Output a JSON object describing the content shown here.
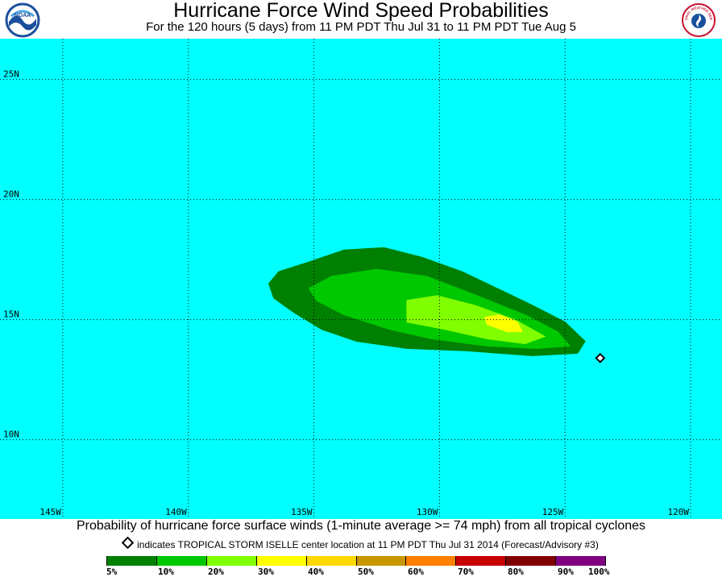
{
  "header": {
    "title": "Hurricane Force Wind Speed Probabilities",
    "subtitle": "For the 120 hours (5 days) from 11 PM PDT Thu Jul 31 to 11 PM PDT Tue Aug 5",
    "logo_left_text": "NOAA",
    "logo_right_text": "NATIONAL WEATHER SERVICE"
  },
  "map": {
    "background_color": "#00FFFF",
    "lon_range": [
      -147.5,
      -118.75
    ],
    "lat_range": [
      6.7,
      26.7
    ],
    "lon_ticks": [
      {
        "value": -145,
        "label": "145W"
      },
      {
        "value": -140,
        "label": "140W"
      },
      {
        "value": -135,
        "label": "135W"
      },
      {
        "value": -130,
        "label": "130W"
      },
      {
        "value": -125,
        "label": "125W"
      },
      {
        "value": -120,
        "label": "120W"
      }
    ],
    "lat_ticks": [
      {
        "value": 25,
        "label": "25N"
      },
      {
        "value": 20,
        "label": "20N"
      },
      {
        "value": 15,
        "label": "15N"
      },
      {
        "value": 10,
        "label": "10N"
      }
    ],
    "storm_center": {
      "lon": -123.6,
      "lat": 13.4
    },
    "probability_regions": [
      {
        "level": "5%",
        "color": "#008000",
        "points": [
          [
            -136.8,
            16.5
          ],
          [
            -136.4,
            17.0
          ],
          [
            -135.2,
            17.4
          ],
          [
            -133.8,
            17.9
          ],
          [
            -132.2,
            18.0
          ],
          [
            -130.7,
            17.6
          ],
          [
            -129.1,
            17.0
          ],
          [
            -127.7,
            16.3
          ],
          [
            -126.3,
            15.6
          ],
          [
            -125.0,
            14.9
          ],
          [
            -124.2,
            14.1
          ],
          [
            -124.5,
            13.6
          ],
          [
            -126.3,
            13.5
          ],
          [
            -128.9,
            13.7
          ],
          [
            -131.3,
            13.8
          ],
          [
            -133.3,
            14.1
          ],
          [
            -134.7,
            14.6
          ],
          [
            -135.8,
            15.3
          ],
          [
            -136.6,
            15.9
          ]
        ]
      },
      {
        "level": "10%",
        "color": "#00C800",
        "points": [
          [
            -135.2,
            16.3
          ],
          [
            -134.3,
            16.8
          ],
          [
            -132.5,
            17.1
          ],
          [
            -130.5,
            16.8
          ],
          [
            -128.5,
            16.0
          ],
          [
            -126.6,
            15.2
          ],
          [
            -125.3,
            14.5
          ],
          [
            -124.8,
            13.9
          ],
          [
            -126.1,
            13.8
          ],
          [
            -128.1,
            13.9
          ],
          [
            -130.3,
            14.2
          ],
          [
            -132.0,
            14.6
          ],
          [
            -133.8,
            15.2
          ],
          [
            -134.9,
            15.8
          ]
        ]
      },
      {
        "level": "20%",
        "color": "#80FF00",
        "points": [
          [
            -131.3,
            15.8
          ],
          [
            -130.1,
            16.0
          ],
          [
            -128.6,
            15.6
          ],
          [
            -127.0,
            15.0
          ],
          [
            -125.8,
            14.3
          ],
          [
            -126.6,
            14.0
          ],
          [
            -128.1,
            14.2
          ],
          [
            -129.8,
            14.6
          ],
          [
            -131.3,
            14.9
          ]
        ]
      },
      {
        "level": "30%",
        "color": "#FFFF00",
        "points": [
          [
            -128.2,
            15.1
          ],
          [
            -127.6,
            15.2
          ],
          [
            -126.9,
            14.9
          ],
          [
            -126.7,
            14.5
          ],
          [
            -127.3,
            14.5
          ],
          [
            -128.1,
            14.8
          ]
        ]
      }
    ]
  },
  "caption": {
    "line1": "Probability of hurricane force surface winds (1-minute average >= 74 mph) from all tropical cyclones",
    "line2": "indicates TROPICAL STORM ISELLE center location at 11 PM PDT Thu Jul 31 2014 (Forecast/Advisory #3)"
  },
  "legend": {
    "colors": [
      "#008000",
      "#00C800",
      "#80FF00",
      "#FFFF00",
      "#FFD700",
      "#C89600",
      "#FF8000",
      "#C80000",
      "#800000",
      "#800080"
    ],
    "labels": [
      "5%",
      "10%",
      "20%",
      "30%",
      "40%",
      "50%",
      "60%",
      "70%",
      "80%",
      "90%",
      "100%"
    ]
  }
}
